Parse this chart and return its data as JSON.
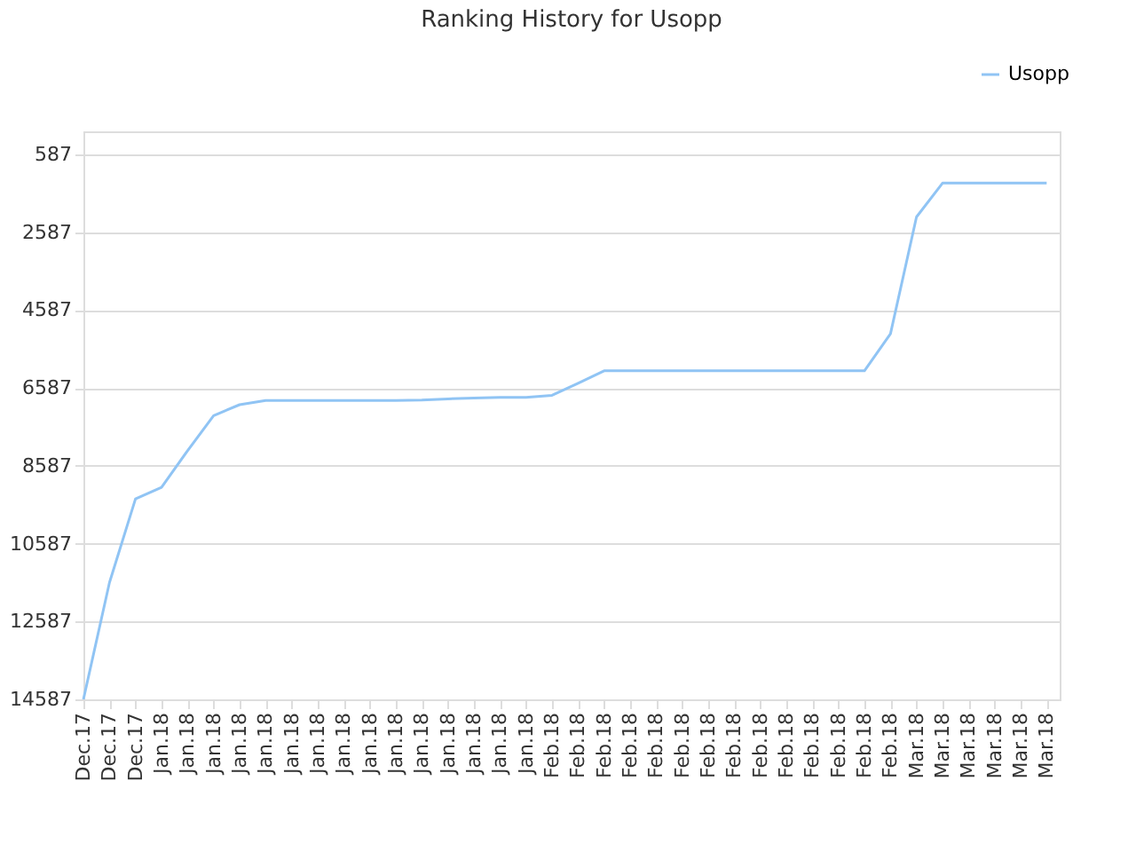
{
  "chart_data": {
    "type": "line",
    "title": "Ranking History for Usopp",
    "categories": [
      "Dec.17",
      "Dec.17",
      "Dec.17",
      "Jan.18",
      "Jan.18",
      "Jan.18",
      "Jan.18",
      "Jan.18",
      "Jan.18",
      "Jan.18",
      "Jan.18",
      "Jan.18",
      "Jan.18",
      "Jan.18",
      "Jan.18",
      "Jan.18",
      "Jan.18",
      "Jan.18",
      "Feb.18",
      "Feb.18",
      "Feb.18",
      "Feb.18",
      "Feb.18",
      "Feb.18",
      "Feb.18",
      "Feb.18",
      "Feb.18",
      "Feb.18",
      "Feb.18",
      "Feb.18",
      "Feb.18",
      "Feb.18",
      "Mar.18",
      "Mar.18",
      "Mar.18",
      "Mar.18",
      "Mar.18",
      "Mar.18"
    ],
    "series": [
      {
        "name": "Usopp",
        "color": "#90c4f4",
        "values": [
          14587,
          11590,
          9440,
          9140,
          8200,
          7300,
          7020,
          6910,
          6910,
          6910,
          6910,
          6910,
          6910,
          6900,
          6870,
          6850,
          6830,
          6830,
          6780,
          6470,
          6150,
          6150,
          6150,
          6150,
          6150,
          6150,
          6150,
          6150,
          6150,
          6150,
          6150,
          5200,
          2200,
          1330,
          1330,
          1330,
          1330,
          1330
        ]
      }
    ],
    "ylim": [
      14587,
      0
    ],
    "yticks": [
      587,
      {
        "value": 2587,
        "label": "2587"
      },
      {
        "value": 4587,
        "label": "4587"
      },
      {
        "value": 6587,
        "label": "6587"
      },
      {
        "value": 8587,
        "label": "8587"
      },
      {
        "value": 10587,
        "label": "10587"
      },
      {
        "value": 12587,
        "label": "12587"
      },
      {
        "value": 14587,
        "label": "14587"
      }
    ],
    "grid": "y",
    "legend": "top right",
    "marker": "none",
    "line_style": "solid"
  }
}
